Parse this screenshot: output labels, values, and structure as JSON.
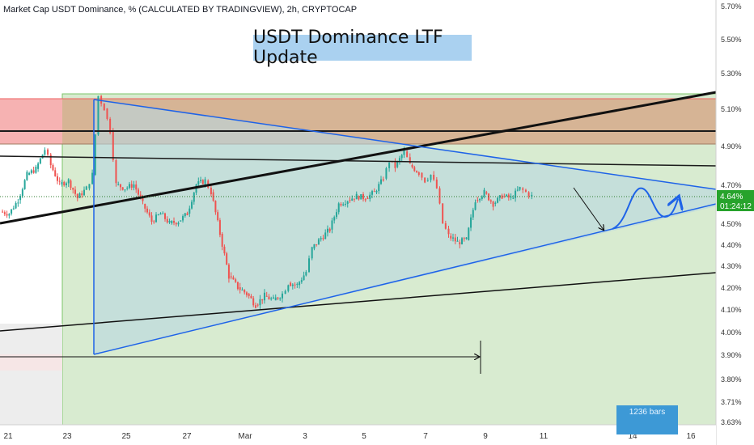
{
  "chart_header": "Market Cap USDT Dominance, % (CALCULATED BY TRADINGVIEW), 2h, CRYPTOCAP",
  "title_banner": "USDT Dominance LTF Update",
  "chart_data": {
    "type": "candlestick",
    "symbol": "Market Cap USDT Dominance, %",
    "interval": "2h",
    "source": "CRYPTOCAP",
    "ylim": [
      3.6,
      5.77
    ],
    "y_ticks": [
      "5.70%",
      "5.50%",
      "5.30%",
      "5.10%",
      "4.90%",
      "4.70%",
      "4.50%",
      "4.40%",
      "4.30%",
      "4.20%",
      "4.10%",
      "4.00%",
      "3.90%",
      "3.80%",
      "3.71%",
      "3.63%"
    ],
    "x_ticks": [
      "21",
      "23",
      "25",
      "27",
      "Mar",
      "3",
      "5",
      "7",
      "9",
      "11",
      "14",
      "16"
    ],
    "current_price_label": "4.64%",
    "countdown_label": "01:24:12",
    "price_path": [
      [
        20.9,
        4.56
      ],
      [
        21.2,
        4.55
      ],
      [
        21.5,
        4.62
      ],
      [
        21.8,
        4.75
      ],
      [
        22.1,
        4.78
      ],
      [
        22.4,
        4.88
      ],
      [
        22.6,
        4.8
      ],
      [
        22.9,
        4.7
      ],
      [
        23.2,
        4.72
      ],
      [
        23.5,
        4.63
      ],
      [
        23.8,
        4.68
      ],
      [
        24.0,
        4.75
      ],
      [
        24.2,
        5.17
      ],
      [
        24.4,
        5.1
      ],
      [
        24.6,
        4.98
      ],
      [
        24.8,
        4.7
      ],
      [
        25.1,
        4.68
      ],
      [
        25.4,
        4.7
      ],
      [
        25.7,
        4.6
      ],
      [
        26.0,
        4.51
      ],
      [
        26.3,
        4.55
      ],
      [
        26.6,
        4.5
      ],
      [
        26.9,
        4.51
      ],
      [
        27.2,
        4.55
      ],
      [
        27.5,
        4.7
      ],
      [
        27.8,
        4.72
      ],
      [
        28.0,
        4.66
      ],
      [
        28.3,
        4.45
      ],
      [
        28.6,
        4.25
      ],
      [
        28.9,
        4.2
      ],
      [
        29.2,
        4.17
      ],
      [
        29.5,
        4.12
      ],
      [
        29.8,
        4.16
      ],
      [
        30.1,
        4.14
      ],
      [
        30.4,
        4.17
      ],
      [
        30.6,
        4.22
      ],
      [
        30.9,
        4.21
      ],
      [
        31.2,
        4.27
      ],
      [
        31.4,
        4.38
      ],
      [
        31.7,
        4.43
      ],
      [
        32.0,
        4.47
      ],
      [
        32.3,
        4.6
      ],
      [
        32.6,
        4.62
      ],
      [
        32.9,
        4.64
      ],
      [
        33.2,
        4.63
      ],
      [
        33.5,
        4.66
      ],
      [
        33.8,
        4.73
      ],
      [
        34.0,
        4.82
      ],
      [
        34.2,
        4.79
      ],
      [
        34.5,
        4.87
      ],
      [
        34.7,
        4.8
      ],
      [
        35.0,
        4.76
      ],
      [
        35.2,
        4.72
      ],
      [
        35.4,
        4.75
      ],
      [
        35.6,
        4.68
      ],
      [
        35.8,
        4.5
      ],
      [
        36.0,
        4.44
      ],
      [
        36.3,
        4.41
      ],
      [
        36.6,
        4.42
      ],
      [
        36.9,
        4.62
      ],
      [
        37.2,
        4.66
      ],
      [
        37.5,
        4.6
      ],
      [
        37.8,
        4.64
      ],
      [
        38.1,
        4.63
      ],
      [
        38.4,
        4.68
      ],
      [
        38.6,
        4.66
      ],
      [
        38.8,
        4.64
      ]
    ],
    "annotations": {
      "supply_zone_upper": [
        4.92,
        5.17
      ],
      "resistance_level": 4.97,
      "triangle_upper_line": {
        "from": [
          24.2,
          5.17
        ],
        "to": [
          45.9,
          4.67
        ]
      },
      "triangle_lower_line": {
        "from": [
          24.0,
          3.91
        ],
        "to": [
          45.9,
          4.6
        ]
      },
      "rising_black_trendline": {
        "from": [
          20.0,
          4.55
        ],
        "to": [
          45.9,
          5.21
        ]
      },
      "descending_black_line": {
        "from": [
          20.0,
          4.85
        ],
        "to": [
          45.9,
          4.79
        ]
      },
      "lower_black_trendline": {
        "from": [
          20.0,
          4.02
        ],
        "to": [
          45.9,
          4.27
        ]
      }
    },
    "bars_box_label": "1236 bars"
  }
}
